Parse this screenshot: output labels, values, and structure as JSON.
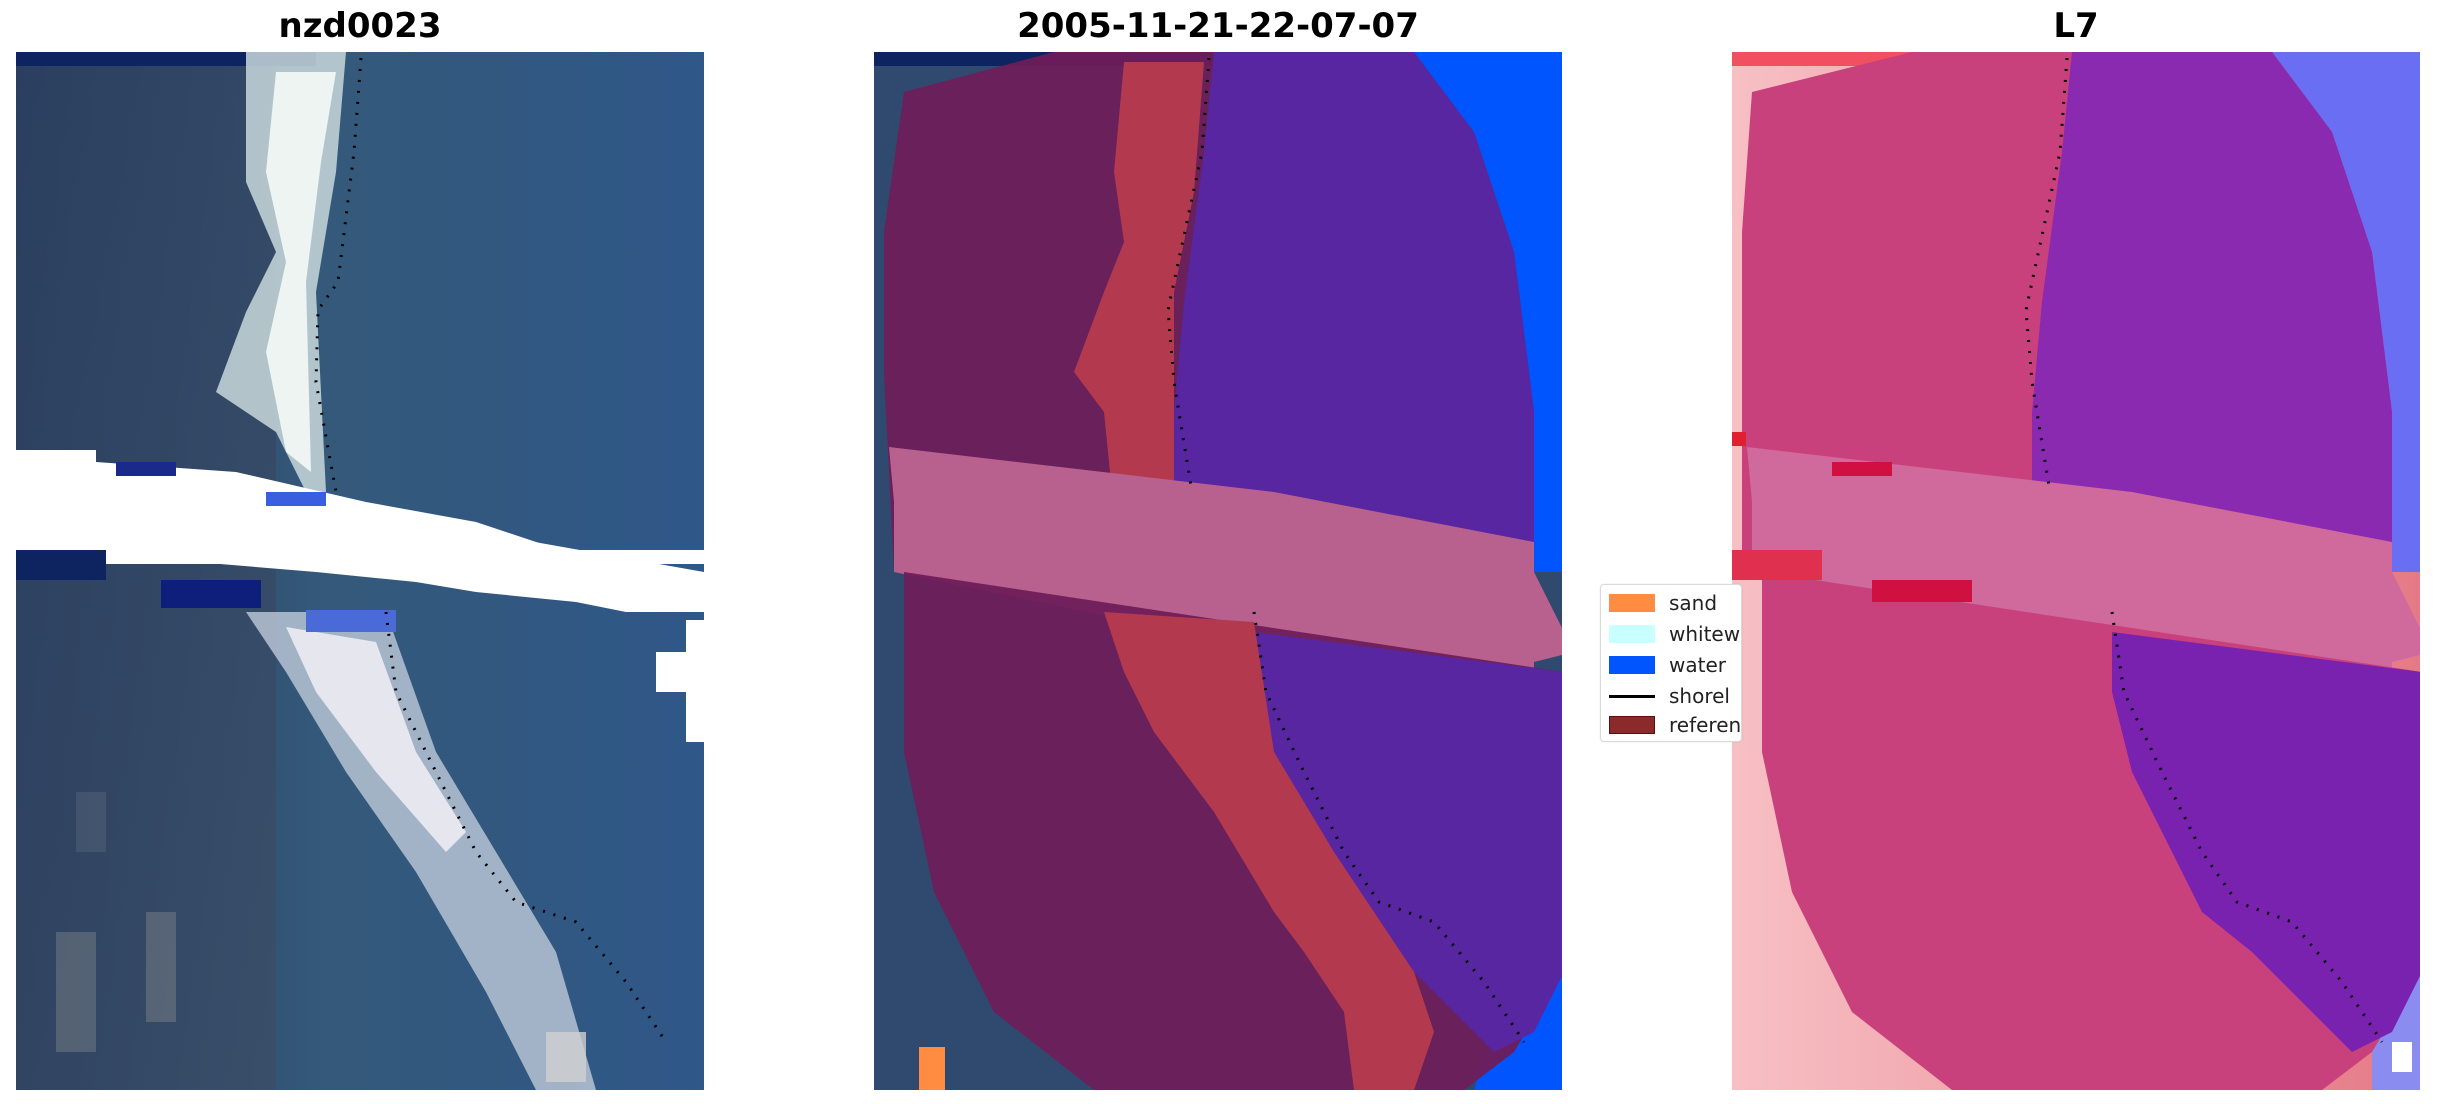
{
  "panels": [
    {
      "title": "nzd0023"
    },
    {
      "title": "2005-11-21-22-07-07"
    },
    {
      "title": "L7"
    }
  ],
  "legend": {
    "items": [
      {
        "label": "sand",
        "color": "#ff8c40",
        "type": "patch"
      },
      {
        "label": "whitew",
        "color": "#c8ffff",
        "type": "patch"
      },
      {
        "label": "water",
        "color": "#0055ff",
        "type": "patch"
      },
      {
        "label": "shorel",
        "color": "#000000",
        "type": "line"
      },
      {
        "label": "referen",
        "color": "#8b2a2a",
        "type": "patch"
      }
    ]
  }
}
